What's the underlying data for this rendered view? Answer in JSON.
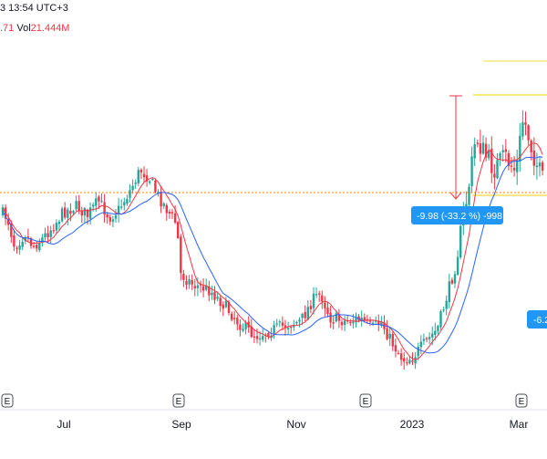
{
  "header": {
    "datetime_text": "3 13:54 UTC+3",
    "open_value_fragment": ".71",
    "volume_label": "Vol",
    "volume_value": "21.444M"
  },
  "colors": {
    "up": "#26a69a",
    "down": "#f23645",
    "ma_fast": "#f23645",
    "ma_slow": "#2962ff",
    "range_tool": "#f23645",
    "fib_levels": "#f5dc3c",
    "price_line": "#f57c00",
    "tag_bg": "#2196f3"
  },
  "chart_data": {
    "type": "candlestick",
    "title": "",
    "xlabel": "",
    "ylabel": "",
    "x_tick_labels": [
      "Jul",
      "Sep",
      "Nov",
      "2023",
      "Mar"
    ],
    "earnings_markers": [
      "E",
      "E",
      "E",
      "E"
    ],
    "range_measure_label": "-9.98 (-33.2 %) -998",
    "partial_tag_label": "-6.2",
    "y_axis_visible": false,
    "grid": false,
    "ylim_relative": [
      0,
      1
    ]
  }
}
